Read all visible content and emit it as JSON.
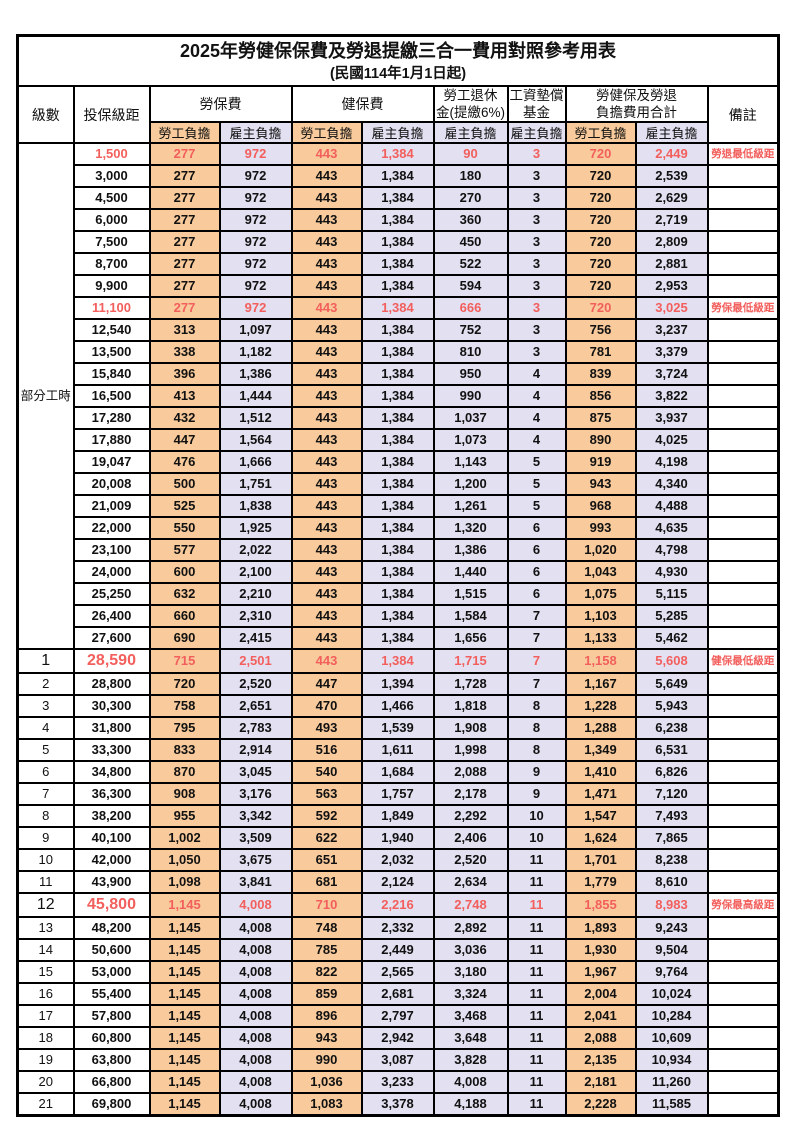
{
  "page": {
    "title": "2025年勞健保保費及勞退提繳三合一費用對照參考用表",
    "subtitle": "(民國114年1月1日起)"
  },
  "header": {
    "level": "級數",
    "bracket": "投保級距",
    "labor_insurance": "勞保費",
    "health_insurance": "健保費",
    "pension_line1": "勞工退休",
    "pension_line2": "金(提繳6%)",
    "wage_fund_line1": "工資墊償",
    "wage_fund_line2": "基金",
    "total_line1": "勞健保及勞退",
    "total_line2": "負擔費用合計",
    "remark": "備註",
    "employee_share": "勞工負擔",
    "employer_share": "雇主負擔"
  },
  "part_time_label": "部分工時",
  "colors": {
    "employee_bg": "#F9CB9C",
    "employer_bg": "#E3E0F1",
    "highlight_text": "#F25F5C"
  },
  "rows": [
    {
      "level": "",
      "bracket": "1,500",
      "labor_emp": "277",
      "labor_er": "972",
      "health_emp": "443",
      "health_er": "1,384",
      "pension_er": "90",
      "wage_fund_er": "3",
      "total_emp": "720",
      "total_er": "2,449",
      "remark": "勞退最低級距",
      "highlight": true,
      "emphasis": false
    },
    {
      "level": "",
      "bracket": "3,000",
      "labor_emp": "277",
      "labor_er": "972",
      "health_emp": "443",
      "health_er": "1,384",
      "pension_er": "180",
      "wage_fund_er": "3",
      "total_emp": "720",
      "total_er": "2,539",
      "remark": "",
      "highlight": false,
      "emphasis": false
    },
    {
      "level": "",
      "bracket": "4,500",
      "labor_emp": "277",
      "labor_er": "972",
      "health_emp": "443",
      "health_er": "1,384",
      "pension_er": "270",
      "wage_fund_er": "3",
      "total_emp": "720",
      "total_er": "2,629",
      "remark": "",
      "highlight": false,
      "emphasis": false
    },
    {
      "level": "",
      "bracket": "6,000",
      "labor_emp": "277",
      "labor_er": "972",
      "health_emp": "443",
      "health_er": "1,384",
      "pension_er": "360",
      "wage_fund_er": "3",
      "total_emp": "720",
      "total_er": "2,719",
      "remark": "",
      "highlight": false,
      "emphasis": false
    },
    {
      "level": "",
      "bracket": "7,500",
      "labor_emp": "277",
      "labor_er": "972",
      "health_emp": "443",
      "health_er": "1,384",
      "pension_er": "450",
      "wage_fund_er": "3",
      "total_emp": "720",
      "total_er": "2,809",
      "remark": "",
      "highlight": false,
      "emphasis": false
    },
    {
      "level": "",
      "bracket": "8,700",
      "labor_emp": "277",
      "labor_er": "972",
      "health_emp": "443",
      "health_er": "1,384",
      "pension_er": "522",
      "wage_fund_er": "3",
      "total_emp": "720",
      "total_er": "2,881",
      "remark": "",
      "highlight": false,
      "emphasis": false
    },
    {
      "level": "",
      "bracket": "9,900",
      "labor_emp": "277",
      "labor_er": "972",
      "health_emp": "443",
      "health_er": "1,384",
      "pension_er": "594",
      "wage_fund_er": "3",
      "total_emp": "720",
      "total_er": "2,953",
      "remark": "",
      "highlight": false,
      "emphasis": false
    },
    {
      "level": "",
      "bracket": "11,100",
      "labor_emp": "277",
      "labor_er": "972",
      "health_emp": "443",
      "health_er": "1,384",
      "pension_er": "666",
      "wage_fund_er": "3",
      "total_emp": "720",
      "total_er": "3,025",
      "remark": "勞保最低級距",
      "highlight": true,
      "emphasis": false
    },
    {
      "level": "",
      "bracket": "12,540",
      "labor_emp": "313",
      "labor_er": "1,097",
      "health_emp": "443",
      "health_er": "1,384",
      "pension_er": "752",
      "wage_fund_er": "3",
      "total_emp": "756",
      "total_er": "3,237",
      "remark": "",
      "highlight": false,
      "emphasis": false
    },
    {
      "level": "",
      "bracket": "13,500",
      "labor_emp": "338",
      "labor_er": "1,182",
      "health_emp": "443",
      "health_er": "1,384",
      "pension_er": "810",
      "wage_fund_er": "3",
      "total_emp": "781",
      "total_er": "3,379",
      "remark": "",
      "highlight": false,
      "emphasis": false
    },
    {
      "level": "",
      "bracket": "15,840",
      "labor_emp": "396",
      "labor_er": "1,386",
      "health_emp": "443",
      "health_er": "1,384",
      "pension_er": "950",
      "wage_fund_er": "4",
      "total_emp": "839",
      "total_er": "3,724",
      "remark": "",
      "highlight": false,
      "emphasis": false
    },
    {
      "level": "",
      "bracket": "16,500",
      "labor_emp": "413",
      "labor_er": "1,444",
      "health_emp": "443",
      "health_er": "1,384",
      "pension_er": "990",
      "wage_fund_er": "4",
      "total_emp": "856",
      "total_er": "3,822",
      "remark": "",
      "highlight": false,
      "emphasis": false
    },
    {
      "level": "",
      "bracket": "17,280",
      "labor_emp": "432",
      "labor_er": "1,512",
      "health_emp": "443",
      "health_er": "1,384",
      "pension_er": "1,037",
      "wage_fund_er": "4",
      "total_emp": "875",
      "total_er": "3,937",
      "remark": "",
      "highlight": false,
      "emphasis": false
    },
    {
      "level": "",
      "bracket": "17,880",
      "labor_emp": "447",
      "labor_er": "1,564",
      "health_emp": "443",
      "health_er": "1,384",
      "pension_er": "1,073",
      "wage_fund_er": "4",
      "total_emp": "890",
      "total_er": "4,025",
      "remark": "",
      "highlight": false,
      "emphasis": false
    },
    {
      "level": "",
      "bracket": "19,047",
      "labor_emp": "476",
      "labor_er": "1,666",
      "health_emp": "443",
      "health_er": "1,384",
      "pension_er": "1,143",
      "wage_fund_er": "5",
      "total_emp": "919",
      "total_er": "4,198",
      "remark": "",
      "highlight": false,
      "emphasis": false
    },
    {
      "level": "",
      "bracket": "20,008",
      "labor_emp": "500",
      "labor_er": "1,751",
      "health_emp": "443",
      "health_er": "1,384",
      "pension_er": "1,200",
      "wage_fund_er": "5",
      "total_emp": "943",
      "total_er": "4,340",
      "remark": "",
      "highlight": false,
      "emphasis": false
    },
    {
      "level": "",
      "bracket": "21,009",
      "labor_emp": "525",
      "labor_er": "1,838",
      "health_emp": "443",
      "health_er": "1,384",
      "pension_er": "1,261",
      "wage_fund_er": "5",
      "total_emp": "968",
      "total_er": "4,488",
      "remark": "",
      "highlight": false,
      "emphasis": false
    },
    {
      "level": "",
      "bracket": "22,000",
      "labor_emp": "550",
      "labor_er": "1,925",
      "health_emp": "443",
      "health_er": "1,384",
      "pension_er": "1,320",
      "wage_fund_er": "6",
      "total_emp": "993",
      "total_er": "4,635",
      "remark": "",
      "highlight": false,
      "emphasis": false
    },
    {
      "level": "",
      "bracket": "23,100",
      "labor_emp": "577",
      "labor_er": "2,022",
      "health_emp": "443",
      "health_er": "1,384",
      "pension_er": "1,386",
      "wage_fund_er": "6",
      "total_emp": "1,020",
      "total_er": "4,798",
      "remark": "",
      "highlight": false,
      "emphasis": false
    },
    {
      "level": "",
      "bracket": "24,000",
      "labor_emp": "600",
      "labor_er": "2,100",
      "health_emp": "443",
      "health_er": "1,384",
      "pension_er": "1,440",
      "wage_fund_er": "6",
      "total_emp": "1,043",
      "total_er": "4,930",
      "remark": "",
      "highlight": false,
      "emphasis": false
    },
    {
      "level": "",
      "bracket": "25,250",
      "labor_emp": "632",
      "labor_er": "2,210",
      "health_emp": "443",
      "health_er": "1,384",
      "pension_er": "1,515",
      "wage_fund_er": "6",
      "total_emp": "1,075",
      "total_er": "5,115",
      "remark": "",
      "highlight": false,
      "emphasis": false
    },
    {
      "level": "",
      "bracket": "26,400",
      "labor_emp": "660",
      "labor_er": "2,310",
      "health_emp": "443",
      "health_er": "1,384",
      "pension_er": "1,584",
      "wage_fund_er": "7",
      "total_emp": "1,103",
      "total_er": "5,285",
      "remark": "",
      "highlight": false,
      "emphasis": false
    },
    {
      "level": "",
      "bracket": "27,600",
      "labor_emp": "690",
      "labor_er": "2,415",
      "health_emp": "443",
      "health_er": "1,384",
      "pension_er": "1,656",
      "wage_fund_er": "7",
      "total_emp": "1,133",
      "total_er": "5,462",
      "remark": "",
      "highlight": false,
      "emphasis": false
    },
    {
      "level": "1",
      "bracket": "28,590",
      "labor_emp": "715",
      "labor_er": "2,501",
      "health_emp": "443",
      "health_er": "1,384",
      "pension_er": "1,715",
      "wage_fund_er": "7",
      "total_emp": "1,158",
      "total_er": "5,608",
      "remark": "健保最低級距",
      "highlight": true,
      "emphasis": true
    },
    {
      "level": "2",
      "bracket": "28,800",
      "labor_emp": "720",
      "labor_er": "2,520",
      "health_emp": "447",
      "health_er": "1,394",
      "pension_er": "1,728",
      "wage_fund_er": "7",
      "total_emp": "1,167",
      "total_er": "5,649",
      "remark": "",
      "highlight": false,
      "emphasis": false
    },
    {
      "level": "3",
      "bracket": "30,300",
      "labor_emp": "758",
      "labor_er": "2,651",
      "health_emp": "470",
      "health_er": "1,466",
      "pension_er": "1,818",
      "wage_fund_er": "8",
      "total_emp": "1,228",
      "total_er": "5,943",
      "remark": "",
      "highlight": false,
      "emphasis": false
    },
    {
      "level": "4",
      "bracket": "31,800",
      "labor_emp": "795",
      "labor_er": "2,783",
      "health_emp": "493",
      "health_er": "1,539",
      "pension_er": "1,908",
      "wage_fund_er": "8",
      "total_emp": "1,288",
      "total_er": "6,238",
      "remark": "",
      "highlight": false,
      "emphasis": false
    },
    {
      "level": "5",
      "bracket": "33,300",
      "labor_emp": "833",
      "labor_er": "2,914",
      "health_emp": "516",
      "health_er": "1,611",
      "pension_er": "1,998",
      "wage_fund_er": "8",
      "total_emp": "1,349",
      "total_er": "6,531",
      "remark": "",
      "highlight": false,
      "emphasis": false
    },
    {
      "level": "6",
      "bracket": "34,800",
      "labor_emp": "870",
      "labor_er": "3,045",
      "health_emp": "540",
      "health_er": "1,684",
      "pension_er": "2,088",
      "wage_fund_er": "9",
      "total_emp": "1,410",
      "total_er": "6,826",
      "remark": "",
      "highlight": false,
      "emphasis": false
    },
    {
      "level": "7",
      "bracket": "36,300",
      "labor_emp": "908",
      "labor_er": "3,176",
      "health_emp": "563",
      "health_er": "1,757",
      "pension_er": "2,178",
      "wage_fund_er": "9",
      "total_emp": "1,471",
      "total_er": "7,120",
      "remark": "",
      "highlight": false,
      "emphasis": false
    },
    {
      "level": "8",
      "bracket": "38,200",
      "labor_emp": "955",
      "labor_er": "3,342",
      "health_emp": "592",
      "health_er": "1,849",
      "pension_er": "2,292",
      "wage_fund_er": "10",
      "total_emp": "1,547",
      "total_er": "7,493",
      "remark": "",
      "highlight": false,
      "emphasis": false
    },
    {
      "level": "9",
      "bracket": "40,100",
      "labor_emp": "1,002",
      "labor_er": "3,509",
      "health_emp": "622",
      "health_er": "1,940",
      "pension_er": "2,406",
      "wage_fund_er": "10",
      "total_emp": "1,624",
      "total_er": "7,865",
      "remark": "",
      "highlight": false,
      "emphasis": false
    },
    {
      "level": "10",
      "bracket": "42,000",
      "labor_emp": "1,050",
      "labor_er": "3,675",
      "health_emp": "651",
      "health_er": "2,032",
      "pension_er": "2,520",
      "wage_fund_er": "11",
      "total_emp": "1,701",
      "total_er": "8,238",
      "remark": "",
      "highlight": false,
      "emphasis": false
    },
    {
      "level": "11",
      "bracket": "43,900",
      "labor_emp": "1,098",
      "labor_er": "3,841",
      "health_emp": "681",
      "health_er": "2,124",
      "pension_er": "2,634",
      "wage_fund_er": "11",
      "total_emp": "1,779",
      "total_er": "8,610",
      "remark": "",
      "highlight": false,
      "emphasis": false
    },
    {
      "level": "12",
      "bracket": "45,800",
      "labor_emp": "1,145",
      "labor_er": "4,008",
      "health_emp": "710",
      "health_er": "2,216",
      "pension_er": "2,748",
      "wage_fund_er": "11",
      "total_emp": "1,855",
      "total_er": "8,983",
      "remark": "勞保最高級距",
      "highlight": true,
      "emphasis": true
    },
    {
      "level": "13",
      "bracket": "48,200",
      "labor_emp": "1,145",
      "labor_er": "4,008",
      "health_emp": "748",
      "health_er": "2,332",
      "pension_er": "2,892",
      "wage_fund_er": "11",
      "total_emp": "1,893",
      "total_er": "9,243",
      "remark": "",
      "highlight": false,
      "emphasis": false
    },
    {
      "level": "14",
      "bracket": "50,600",
      "labor_emp": "1,145",
      "labor_er": "4,008",
      "health_emp": "785",
      "health_er": "2,449",
      "pension_er": "3,036",
      "wage_fund_er": "11",
      "total_emp": "1,930",
      "total_er": "9,504",
      "remark": "",
      "highlight": false,
      "emphasis": false
    },
    {
      "level": "15",
      "bracket": "53,000",
      "labor_emp": "1,145",
      "labor_er": "4,008",
      "health_emp": "822",
      "health_er": "2,565",
      "pension_er": "3,180",
      "wage_fund_er": "11",
      "total_emp": "1,967",
      "total_er": "9,764",
      "remark": "",
      "highlight": false,
      "emphasis": false
    },
    {
      "level": "16",
      "bracket": "55,400",
      "labor_emp": "1,145",
      "labor_er": "4,008",
      "health_emp": "859",
      "health_er": "2,681",
      "pension_er": "3,324",
      "wage_fund_er": "11",
      "total_emp": "2,004",
      "total_er": "10,024",
      "remark": "",
      "highlight": false,
      "emphasis": false
    },
    {
      "level": "17",
      "bracket": "57,800",
      "labor_emp": "1,145",
      "labor_er": "4,008",
      "health_emp": "896",
      "health_er": "2,797",
      "pension_er": "3,468",
      "wage_fund_er": "11",
      "total_emp": "2,041",
      "total_er": "10,284",
      "remark": "",
      "highlight": false,
      "emphasis": false
    },
    {
      "level": "18",
      "bracket": "60,800",
      "labor_emp": "1,145",
      "labor_er": "4,008",
      "health_emp": "943",
      "health_er": "2,942",
      "pension_er": "3,648",
      "wage_fund_er": "11",
      "total_emp": "2,088",
      "total_er": "10,609",
      "remark": "",
      "highlight": false,
      "emphasis": false
    },
    {
      "level": "19",
      "bracket": "63,800",
      "labor_emp": "1,145",
      "labor_er": "4,008",
      "health_emp": "990",
      "health_er": "3,087",
      "pension_er": "3,828",
      "wage_fund_er": "11",
      "total_emp": "2,135",
      "total_er": "10,934",
      "remark": "",
      "highlight": false,
      "emphasis": false
    },
    {
      "level": "20",
      "bracket": "66,800",
      "labor_emp": "1,145",
      "labor_er": "4,008",
      "health_emp": "1,036",
      "health_er": "3,233",
      "pension_er": "4,008",
      "wage_fund_er": "11",
      "total_emp": "2,181",
      "total_er": "11,260",
      "remark": "",
      "highlight": false,
      "emphasis": false
    },
    {
      "level": "21",
      "bracket": "69,800",
      "labor_emp": "1,145",
      "labor_er": "4,008",
      "health_emp": "1,083",
      "health_er": "3,378",
      "pension_er": "4,188",
      "wage_fund_er": "11",
      "total_emp": "2,228",
      "total_er": "11,585",
      "remark": "",
      "highlight": false,
      "emphasis": false
    }
  ]
}
